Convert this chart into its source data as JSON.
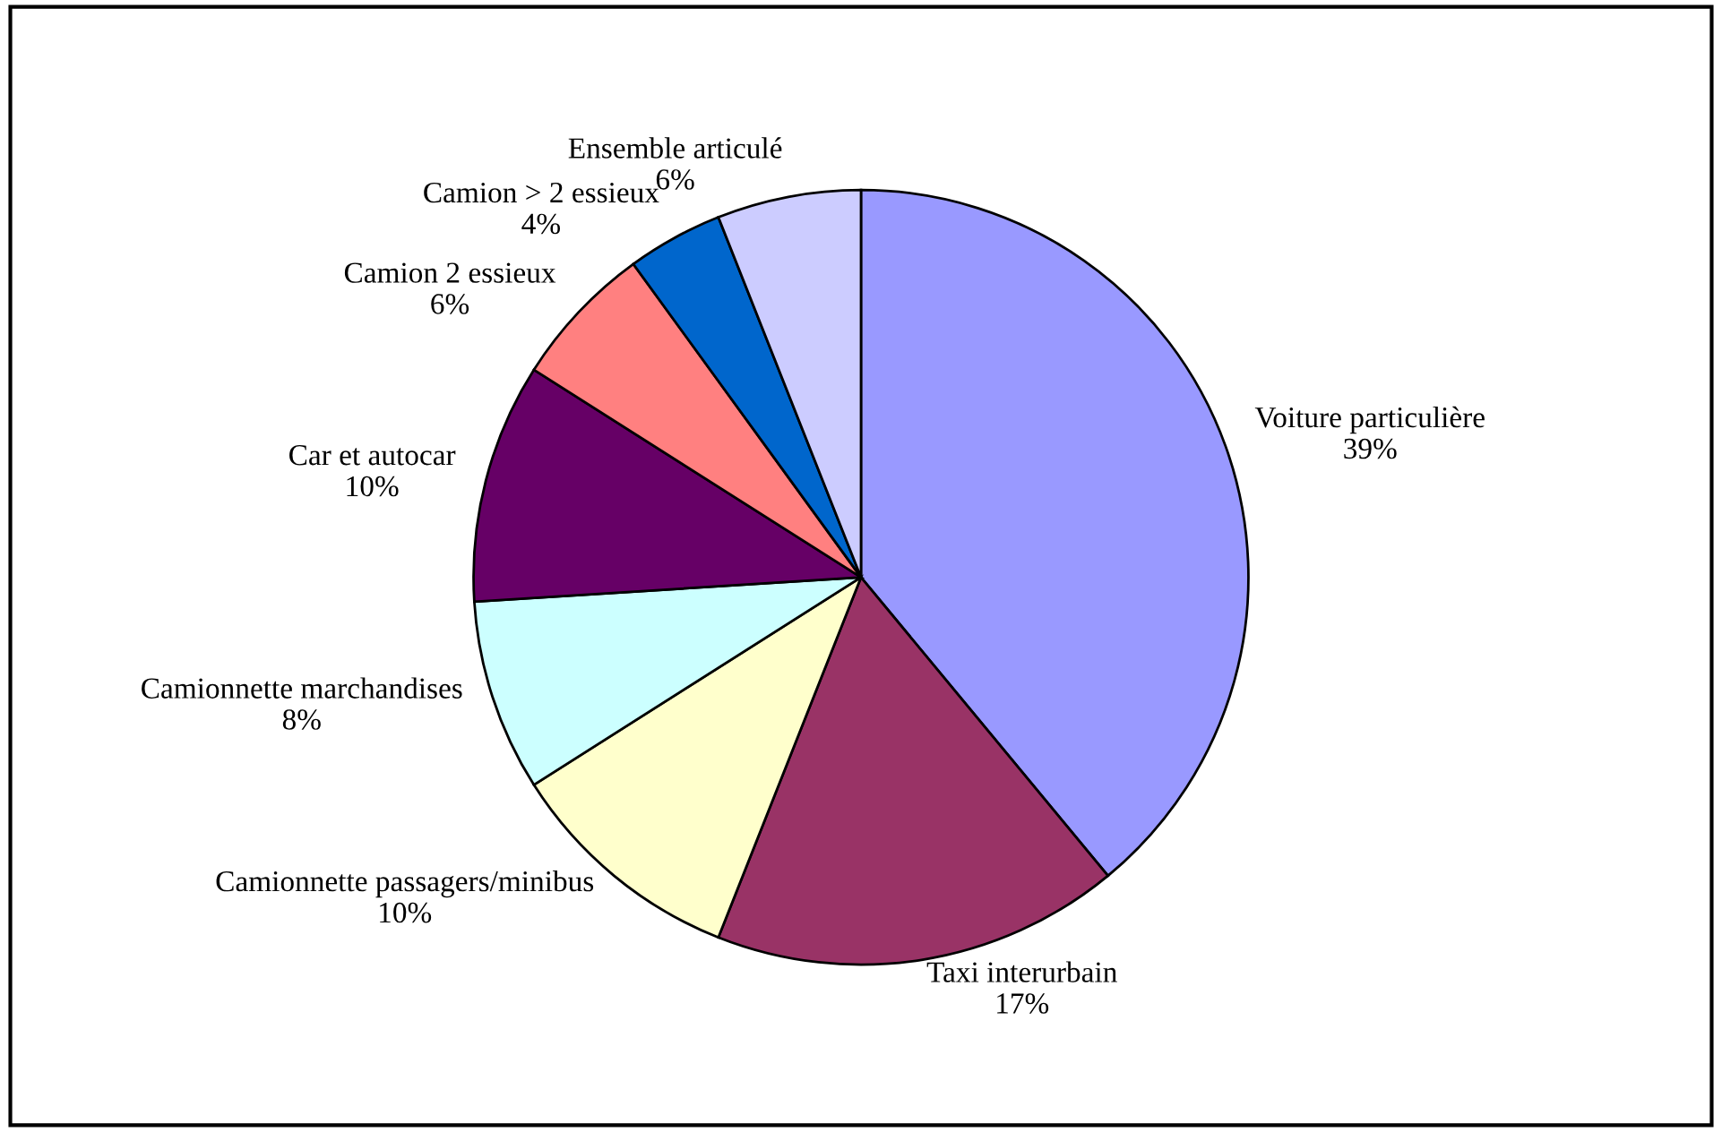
{
  "chart_data": {
    "type": "pie",
    "categories": [
      "Voiture particulière",
      "Taxi interurbain",
      "Camionnette passagers/minibus",
      "Camionnette marchandises",
      "Car et autocar",
      "Camion 2 essieux",
      "Camion > 2 essieux",
      "Ensemble articulé"
    ],
    "values": [
      39,
      17,
      10,
      8,
      10,
      6,
      4,
      6
    ],
    "value_labels": [
      "39%",
      "17%",
      "10%",
      "8%",
      "10%",
      "6%",
      "4%",
      "6%"
    ],
    "colors": [
      "#9999ff",
      "#993366",
      "#ffffcc",
      "#ccffff",
      "#660066",
      "#ff8080",
      "#0066cc",
      "#ccccff"
    ],
    "legend": false
  }
}
